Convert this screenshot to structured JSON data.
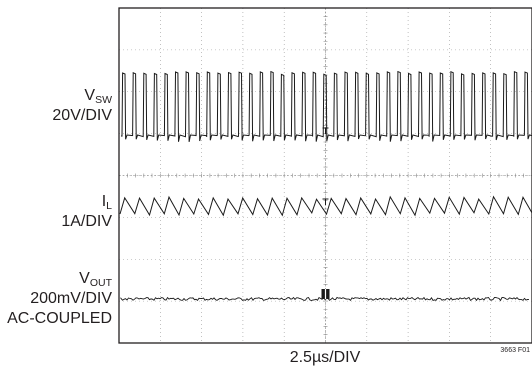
{
  "chart_data": {
    "type": "line",
    "title": "",
    "grid": true,
    "divisions": {
      "x": 10,
      "y": 8
    },
    "xlabel": "2.5µs/DIV",
    "figure_id": "3663 F01",
    "traces": [
      {
        "key": "vsw",
        "name_main": "V",
        "name_sub": "SW",
        "scale": "20V/DIV",
        "extra": "",
        "waveform": "switching pulses",
        "pulse_count": 39
      },
      {
        "key": "il",
        "name_main": "I",
        "name_sub": "L",
        "scale": "1A/DIV",
        "extra": "",
        "waveform": "triangle ripple",
        "cycle_count": 28
      },
      {
        "key": "vout",
        "name_main": "V",
        "name_sub": "OUT",
        "scale": "200mV/DIV",
        "extra": "AC-COUPLED",
        "waveform": "noise"
      }
    ]
  }
}
